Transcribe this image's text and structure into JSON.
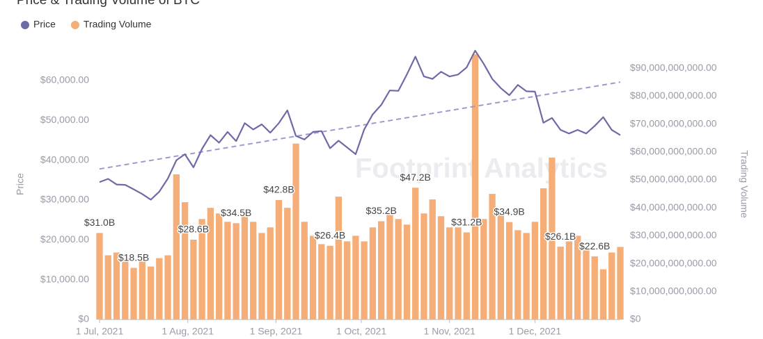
{
  "chart_data": {
    "type": "combo",
    "title": "Price & Trading Volume of BTC",
    "watermark": "Footprint Analytics",
    "y_label": "Price",
    "y2_label": "Trading Volume",
    "x": [
      "2021-07-01",
      "2021-07-04",
      "2021-07-07",
      "2021-07-10",
      "2021-07-13",
      "2021-07-16",
      "2021-07-19",
      "2021-07-22",
      "2021-07-25",
      "2021-07-28",
      "2021-07-31",
      "2021-08-03",
      "2021-08-06",
      "2021-08-09",
      "2021-08-12",
      "2021-08-15",
      "2021-08-18",
      "2021-08-21",
      "2021-08-24",
      "2021-08-27",
      "2021-08-30",
      "2021-09-02",
      "2021-09-05",
      "2021-09-08",
      "2021-09-11",
      "2021-09-14",
      "2021-09-17",
      "2021-09-20",
      "2021-09-23",
      "2021-09-26",
      "2021-09-29",
      "2021-10-02",
      "2021-10-05",
      "2021-10-08",
      "2021-10-11",
      "2021-10-14",
      "2021-10-17",
      "2021-10-20",
      "2021-10-23",
      "2021-10-26",
      "2021-10-29",
      "2021-11-01",
      "2021-11-04",
      "2021-11-07",
      "2021-11-10",
      "2021-11-13",
      "2021-11-16",
      "2021-11-19",
      "2021-11-22",
      "2021-11-25",
      "2021-11-28",
      "2021-12-01",
      "2021-12-04",
      "2021-12-07",
      "2021-12-10",
      "2021-12-13",
      "2021-12-16",
      "2021-12-19",
      "2021-12-22",
      "2021-12-25",
      "2021-12-28",
      "2021-12-31"
    ],
    "xlim": [
      "2021-07-01",
      "2021-12-31"
    ],
    "xticks": [
      {
        "value": "2021-07-01",
        "label": "1 Jul, 2021"
      },
      {
        "value": "2021-08-01",
        "label": "1 Aug, 2021"
      },
      {
        "value": "2021-09-01",
        "label": "1 Sep, 2021"
      },
      {
        "value": "2021-10-01",
        "label": "1 Oct, 2021"
      },
      {
        "value": "2021-11-01",
        "label": "1 Nov, 2021"
      },
      {
        "value": "2021-12-01",
        "label": "1 Dec, 2021"
      }
    ],
    "series": [
      {
        "name": "Price",
        "type": "line",
        "color": "#6e6aa8",
        "values": [
          34500,
          35300,
          33900,
          33800,
          32700,
          31500,
          30100,
          32100,
          35400,
          40000,
          41500,
          38200,
          42800,
          46300,
          44400,
          47100,
          44800,
          49300,
          47700,
          49000,
          46900,
          49300,
          52500,
          46100,
          45200,
          47100,
          47300,
          43000,
          44900,
          43200,
          41500,
          47700,
          51500,
          53900,
          57500,
          57400,
          61500,
          66000,
          61000,
          60400,
          62200,
          61000,
          61500,
          63300,
          67500,
          64200,
          60400,
          58100,
          56300,
          58900,
          57300,
          57200,
          49400,
          50600,
          47600,
          46700,
          47600,
          46700,
          48600,
          50800,
          47600,
          46300
        ]
      },
      {
        "name": "Trading Volume",
        "type": "bar",
        "axis": "y2",
        "color": "#f5ae77",
        "values": [
          31000000000.0,
          23000000000.0,
          24000000000.0,
          22000000000.0,
          18500000000.0,
          21000000000.0,
          19000000000.0,
          22000000000.0,
          23000000000.0,
          52000000000.0,
          42000000000.0,
          28600000000.0,
          36000000000.0,
          40000000000.0,
          38000000000.0,
          35000000000.0,
          34500000000.0,
          37000000000.0,
          35000000000.0,
          31000000000.0,
          33000000000.0,
          42800000000.0,
          40000000000.0,
          63000000000.0,
          35000000000.0,
          30000000000.0,
          27000000000.0,
          26400000000.0,
          44000000000.0,
          28000000000.0,
          30000000000.0,
          28000000000.0,
          33000000000.0,
          35200000000.0,
          38000000000.0,
          36000000000.0,
          34000000000.0,
          47200000000.0,
          38000000000.0,
          43000000000.0,
          37000000000.0,
          33000000000.0,
          33000000000.0,
          31200000000.0,
          95000000000.0,
          36000000000.0,
          45000000000.0,
          38000000000.0,
          34900000000.0,
          32000000000.0,
          31000000000.0,
          35000000000.0,
          47000000000.0,
          58000000000.0,
          26100000000.0,
          28000000000.0,
          30000000000.0,
          25000000000.0,
          22600000000.0,
          18000000000.0,
          24000000000.0,
          26000000000.0
        ],
        "value_labels": [
          "$31.0B",
          null,
          null,
          null,
          "$18.5B",
          null,
          null,
          null,
          null,
          null,
          null,
          "$28.6B",
          null,
          null,
          null,
          null,
          "$34.5B",
          null,
          null,
          null,
          null,
          "$42.8B",
          null,
          null,
          null,
          null,
          null,
          "$26.4B",
          null,
          null,
          null,
          null,
          null,
          "$35.2B",
          null,
          null,
          null,
          "$47.2B",
          null,
          null,
          null,
          null,
          null,
          "$31.2B",
          null,
          null,
          null,
          null,
          "$34.9B",
          null,
          null,
          null,
          null,
          null,
          "$26.1B",
          null,
          null,
          null,
          "$22.6B",
          null,
          null,
          null
        ]
      }
    ],
    "trendline": {
      "start": 37800,
      "end": 59600,
      "color": "#9d9ad0"
    },
    "ylim": [
      0,
      68000
    ],
    "yticks": [
      {
        "value": 0,
        "label": "$0"
      },
      {
        "value": 10000,
        "label": "$10,000.00"
      },
      {
        "value": 20000,
        "label": "$20,000.00"
      },
      {
        "value": 30000,
        "label": "$30,000.00"
      },
      {
        "value": 40000,
        "label": "$40,000.00"
      },
      {
        "value": 50000,
        "label": "$50,000.00"
      },
      {
        "value": 60000,
        "label": "$60,000.00"
      }
    ],
    "y2lim": [
      0,
      97000000000
    ],
    "y2ticks": [
      {
        "value": 0,
        "label": "$0"
      },
      {
        "value": 10000000000,
        "label": "$10,000,000,000.00"
      },
      {
        "value": 20000000000,
        "label": "$20,000,000,000.00"
      },
      {
        "value": 30000000000,
        "label": "$30,000,000,000.00"
      },
      {
        "value": 40000000000,
        "label": "$40,000,000,000.00"
      },
      {
        "value": 50000000000,
        "label": "$50,000,000,000.00"
      },
      {
        "value": 60000000000,
        "label": "$60,000,000,000.00"
      },
      {
        "value": 70000000000,
        "label": "$70,000,000,000.00"
      },
      {
        "value": 80000000000,
        "label": "$80,000,000,000.00"
      },
      {
        "value": 90000000000,
        "label": "$90,000,000,000.00"
      }
    ]
  }
}
